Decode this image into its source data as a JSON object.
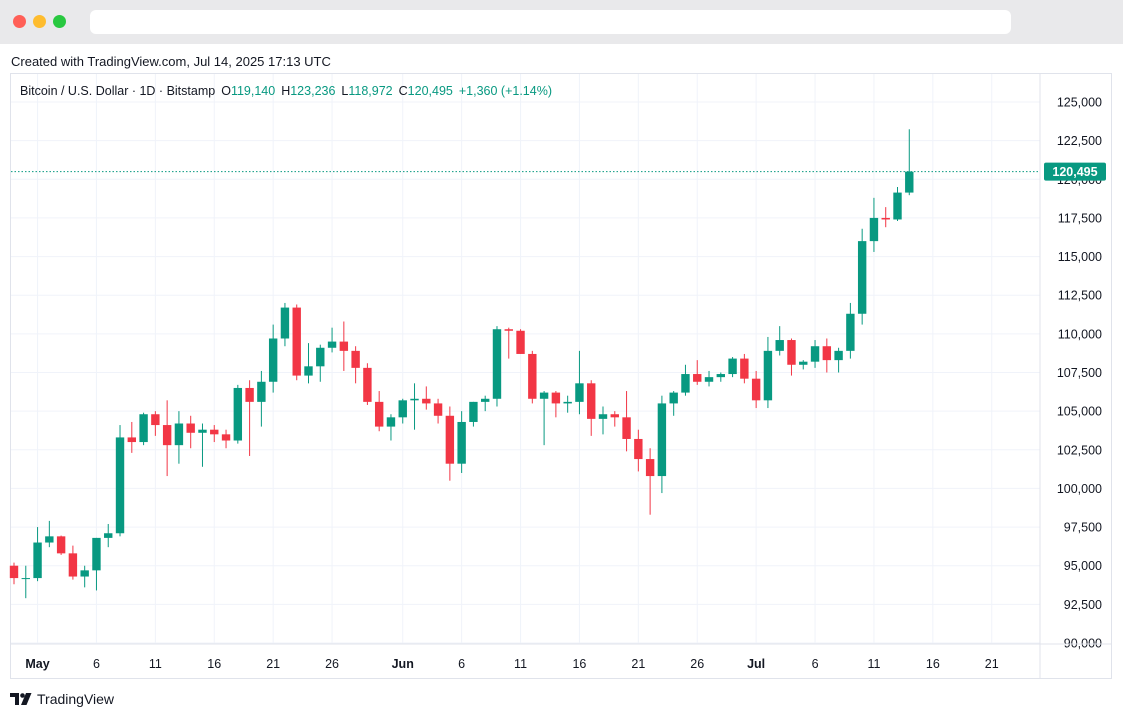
{
  "window": {
    "url": ""
  },
  "header": {
    "created_text": "Created with TradingView.com, Jul 14, 2025 17:13 UTC"
  },
  "legend": {
    "symbol": "Bitcoin / U.S. Dollar · 1D · Bitstamp",
    "open_label": "O",
    "open_value": "119,140",
    "high_label": "H",
    "high_value": "123,236",
    "low_label": "L",
    "low_value": "118,972",
    "close_label": "C",
    "close_value": "120,495",
    "change": "+1,360 (+1.14%)"
  },
  "footer": {
    "brand": "TradingView"
  },
  "colors": {
    "up": "#089981",
    "down": "#f23645",
    "grid": "#f0f3fa",
    "text": "#131722"
  },
  "chart_data": {
    "type": "candlestick",
    "title": "Bitcoin / U.S. Dollar · 1D · Bitstamp",
    "xlabel": "",
    "ylabel": "",
    "ylim": [
      90000,
      125000
    ],
    "y_ticks": [
      "125,000",
      "122,500",
      "120,000",
      "117,500",
      "115,000",
      "112,500",
      "110,000",
      "107,500",
      "105,000",
      "102,500",
      "100,000",
      "97,500",
      "95,000",
      "92,500",
      "90,000"
    ],
    "x_tick_labels": [
      {
        "date": "2025-05-01",
        "label": "May",
        "bold": true
      },
      {
        "date": "2025-05-06",
        "label": "6",
        "bold": false
      },
      {
        "date": "2025-05-11",
        "label": "11",
        "bold": false
      },
      {
        "date": "2025-05-16",
        "label": "16",
        "bold": false
      },
      {
        "date": "2025-05-21",
        "label": "21",
        "bold": false
      },
      {
        "date": "2025-05-26",
        "label": "26",
        "bold": false
      },
      {
        "date": "2025-06-01",
        "label": "Jun",
        "bold": true
      },
      {
        "date": "2025-06-06",
        "label": "6",
        "bold": false
      },
      {
        "date": "2025-06-11",
        "label": "11",
        "bold": false
      },
      {
        "date": "2025-06-16",
        "label": "16",
        "bold": false
      },
      {
        "date": "2025-06-21",
        "label": "21",
        "bold": false
      },
      {
        "date": "2025-06-26",
        "label": "26",
        "bold": false
      },
      {
        "date": "2025-07-01",
        "label": "Jul",
        "bold": true
      },
      {
        "date": "2025-07-06",
        "label": "6",
        "bold": false
      },
      {
        "date": "2025-07-11",
        "label": "11",
        "bold": false
      },
      {
        "date": "2025-07-16",
        "label": "16",
        "bold": false
      },
      {
        "date": "2025-07-21",
        "label": "21",
        "bold": false
      }
    ],
    "last_price": 120495,
    "last_price_label": "120,495",
    "candles": [
      {
        "date": "2025-04-29",
        "open": 95000,
        "high": 95200,
        "low": 93800,
        "close": 94200
      },
      {
        "date": "2025-04-30",
        "open": 94200,
        "high": 95000,
        "low": 92900,
        "close": 94200
      },
      {
        "date": "2025-05-01",
        "open": 94200,
        "high": 97500,
        "low": 94000,
        "close": 96500
      },
      {
        "date": "2025-05-02",
        "open": 96500,
        "high": 97900,
        "low": 96200,
        "close": 96900
      },
      {
        "date": "2025-05-03",
        "open": 96900,
        "high": 96950,
        "low": 95700,
        "close": 95800
      },
      {
        "date": "2025-05-04",
        "open": 95800,
        "high": 96300,
        "low": 94100,
        "close": 94300
      },
      {
        "date": "2025-05-05",
        "open": 94300,
        "high": 95000,
        "low": 93600,
        "close": 94700
      },
      {
        "date": "2025-05-06",
        "open": 94700,
        "high": 96800,
        "low": 93400,
        "close": 96800
      },
      {
        "date": "2025-05-07",
        "open": 96800,
        "high": 97700,
        "low": 96200,
        "close": 97100
      },
      {
        "date": "2025-05-08",
        "open": 97100,
        "high": 104100,
        "low": 96900,
        "close": 103300
      },
      {
        "date": "2025-05-09",
        "open": 103300,
        "high": 104300,
        "low": 102300,
        "close": 103000
      },
      {
        "date": "2025-05-10",
        "open": 103000,
        "high": 104900,
        "low": 102800,
        "close": 104800
      },
      {
        "date": "2025-05-11",
        "open": 104800,
        "high": 105000,
        "low": 103400,
        "close": 104100
      },
      {
        "date": "2025-05-12",
        "open": 104100,
        "high": 105700,
        "low": 100800,
        "close": 102800
      },
      {
        "date": "2025-05-13",
        "open": 102800,
        "high": 105000,
        "low": 101600,
        "close": 104200
      },
      {
        "date": "2025-05-14",
        "open": 104200,
        "high": 104700,
        "low": 102600,
        "close": 103600
      },
      {
        "date": "2025-05-15",
        "open": 103600,
        "high": 104200,
        "low": 101400,
        "close": 103800
      },
      {
        "date": "2025-05-16",
        "open": 103800,
        "high": 104100,
        "low": 103000,
        "close": 103500
      },
      {
        "date": "2025-05-17",
        "open": 103500,
        "high": 103800,
        "low": 102600,
        "close": 103100
      },
      {
        "date": "2025-05-18",
        "open": 103100,
        "high": 106700,
        "low": 102900,
        "close": 106500
      },
      {
        "date": "2025-05-19",
        "open": 106500,
        "high": 107000,
        "low": 102100,
        "close": 105600
      },
      {
        "date": "2025-05-20",
        "open": 105600,
        "high": 107600,
        "low": 104000,
        "close": 106900
      },
      {
        "date": "2025-05-21",
        "open": 106900,
        "high": 110600,
        "low": 106200,
        "close": 109700
      },
      {
        "date": "2025-05-22",
        "open": 109700,
        "high": 112000,
        "low": 109200,
        "close": 111700
      },
      {
        "date": "2025-05-23",
        "open": 111700,
        "high": 111900,
        "low": 107000,
        "close": 107300
      },
      {
        "date": "2025-05-24",
        "open": 107300,
        "high": 109400,
        "low": 106800,
        "close": 107900
      },
      {
        "date": "2025-05-25",
        "open": 107900,
        "high": 109300,
        "low": 106900,
        "close": 109100
      },
      {
        "date": "2025-05-26",
        "open": 109100,
        "high": 110400,
        "low": 108800,
        "close": 109500
      },
      {
        "date": "2025-05-27",
        "open": 109500,
        "high": 110800,
        "low": 107600,
        "close": 108900
      },
      {
        "date": "2025-05-28",
        "open": 108900,
        "high": 109200,
        "low": 106800,
        "close": 107800
      },
      {
        "date": "2025-05-29",
        "open": 107800,
        "high": 108100,
        "low": 105400,
        "close": 105600
      },
      {
        "date": "2025-05-30",
        "open": 105600,
        "high": 106300,
        "low": 103700,
        "close": 104000
      },
      {
        "date": "2025-05-31",
        "open": 104000,
        "high": 104800,
        "low": 103100,
        "close": 104600
      },
      {
        "date": "2025-06-01",
        "open": 104600,
        "high": 105800,
        "low": 104200,
        "close": 105700
      },
      {
        "date": "2025-06-02",
        "open": 105700,
        "high": 106800,
        "low": 103800,
        "close": 105800
      },
      {
        "date": "2025-06-03",
        "open": 105800,
        "high": 106600,
        "low": 105100,
        "close": 105500
      },
      {
        "date": "2025-06-04",
        "open": 105500,
        "high": 105800,
        "low": 104200,
        "close": 104700
      },
      {
        "date": "2025-06-05",
        "open": 104700,
        "high": 105300,
        "low": 100500,
        "close": 101600
      },
      {
        "date": "2025-06-06",
        "open": 101600,
        "high": 105000,
        "low": 101000,
        "close": 104300
      },
      {
        "date": "2025-06-07",
        "open": 104300,
        "high": 105600,
        "low": 104000,
        "close": 105600
      },
      {
        "date": "2025-06-08",
        "open": 105600,
        "high": 106000,
        "low": 105000,
        "close": 105800
      },
      {
        "date": "2025-06-09",
        "open": 105800,
        "high": 110500,
        "low": 105300,
        "close": 110300
      },
      {
        "date": "2025-06-10",
        "open": 110300,
        "high": 110400,
        "low": 108400,
        "close": 110200
      },
      {
        "date": "2025-06-11",
        "open": 110200,
        "high": 110300,
        "low": 108700,
        "close": 108700
      },
      {
        "date": "2025-06-12",
        "open": 108700,
        "high": 108900,
        "low": 105500,
        "close": 105800
      },
      {
        "date": "2025-06-13",
        "open": 105800,
        "high": 106300,
        "low": 102800,
        "close": 106200
      },
      {
        "date": "2025-06-14",
        "open": 106200,
        "high": 106300,
        "low": 104600,
        "close": 105500
      },
      {
        "date": "2025-06-15",
        "open": 105500,
        "high": 106000,
        "low": 104900,
        "close": 105600
      },
      {
        "date": "2025-06-16",
        "open": 105600,
        "high": 108900,
        "low": 104800,
        "close": 106800
      },
      {
        "date": "2025-06-17",
        "open": 106800,
        "high": 107000,
        "low": 103400,
        "close": 104500
      },
      {
        "date": "2025-06-18",
        "open": 104500,
        "high": 105300,
        "low": 103500,
        "close": 104800
      },
      {
        "date": "2025-06-19",
        "open": 104800,
        "high": 105000,
        "low": 104000,
        "close": 104600
      },
      {
        "date": "2025-06-20",
        "open": 104600,
        "high": 106300,
        "low": 102400,
        "close": 103200
      },
      {
        "date": "2025-06-21",
        "open": 103200,
        "high": 103800,
        "low": 101100,
        "close": 101900
      },
      {
        "date": "2025-06-22",
        "open": 101900,
        "high": 102600,
        "low": 98300,
        "close": 100800
      },
      {
        "date": "2025-06-23",
        "open": 100800,
        "high": 106000,
        "low": 99700,
        "close": 105500
      },
      {
        "date": "2025-06-24",
        "open": 105500,
        "high": 106300,
        "low": 104700,
        "close": 106200
      },
      {
        "date": "2025-06-25",
        "open": 106200,
        "high": 108000,
        "low": 106000,
        "close": 107400
      },
      {
        "date": "2025-06-26",
        "open": 107400,
        "high": 108300,
        "low": 106700,
        "close": 106900
      },
      {
        "date": "2025-06-27",
        "open": 106900,
        "high": 107600,
        "low": 106600,
        "close": 107200
      },
      {
        "date": "2025-06-28",
        "open": 107200,
        "high": 107500,
        "low": 106900,
        "close": 107400
      },
      {
        "date": "2025-06-29",
        "open": 107400,
        "high": 108500,
        "low": 107200,
        "close": 108400
      },
      {
        "date": "2025-06-30",
        "open": 108400,
        "high": 108700,
        "low": 106800,
        "close": 107100
      },
      {
        "date": "2025-07-01",
        "open": 107100,
        "high": 107600,
        "low": 105200,
        "close": 105700
      },
      {
        "date": "2025-07-02",
        "open": 105700,
        "high": 109800,
        "low": 105200,
        "close": 108900
      },
      {
        "date": "2025-07-03",
        "open": 108900,
        "high": 110500,
        "low": 108600,
        "close": 109600
      },
      {
        "date": "2025-07-04",
        "open": 109600,
        "high": 109700,
        "low": 107300,
        "close": 108000
      },
      {
        "date": "2025-07-05",
        "open": 108000,
        "high": 108300,
        "low": 107700,
        "close": 108200
      },
      {
        "date": "2025-07-06",
        "open": 108200,
        "high": 109600,
        "low": 107800,
        "close": 109200
      },
      {
        "date": "2025-07-07",
        "open": 109200,
        "high": 109700,
        "low": 107500,
        "close": 108300
      },
      {
        "date": "2025-07-08",
        "open": 108300,
        "high": 109100,
        "low": 107500,
        "close": 108900
      },
      {
        "date": "2025-07-09",
        "open": 108900,
        "high": 112000,
        "low": 108400,
        "close": 111300
      },
      {
        "date": "2025-07-10",
        "open": 111300,
        "high": 116800,
        "low": 110600,
        "close": 116000
      },
      {
        "date": "2025-07-11",
        "open": 116000,
        "high": 118800,
        "low": 115300,
        "close": 117500
      },
      {
        "date": "2025-07-12",
        "open": 117500,
        "high": 118200,
        "low": 116900,
        "close": 117400
      },
      {
        "date": "2025-07-13",
        "open": 117400,
        "high": 119500,
        "low": 117300,
        "close": 119140
      },
      {
        "date": "2025-07-14",
        "open": 119140,
        "high": 123236,
        "low": 118972,
        "close": 120495
      }
    ]
  }
}
